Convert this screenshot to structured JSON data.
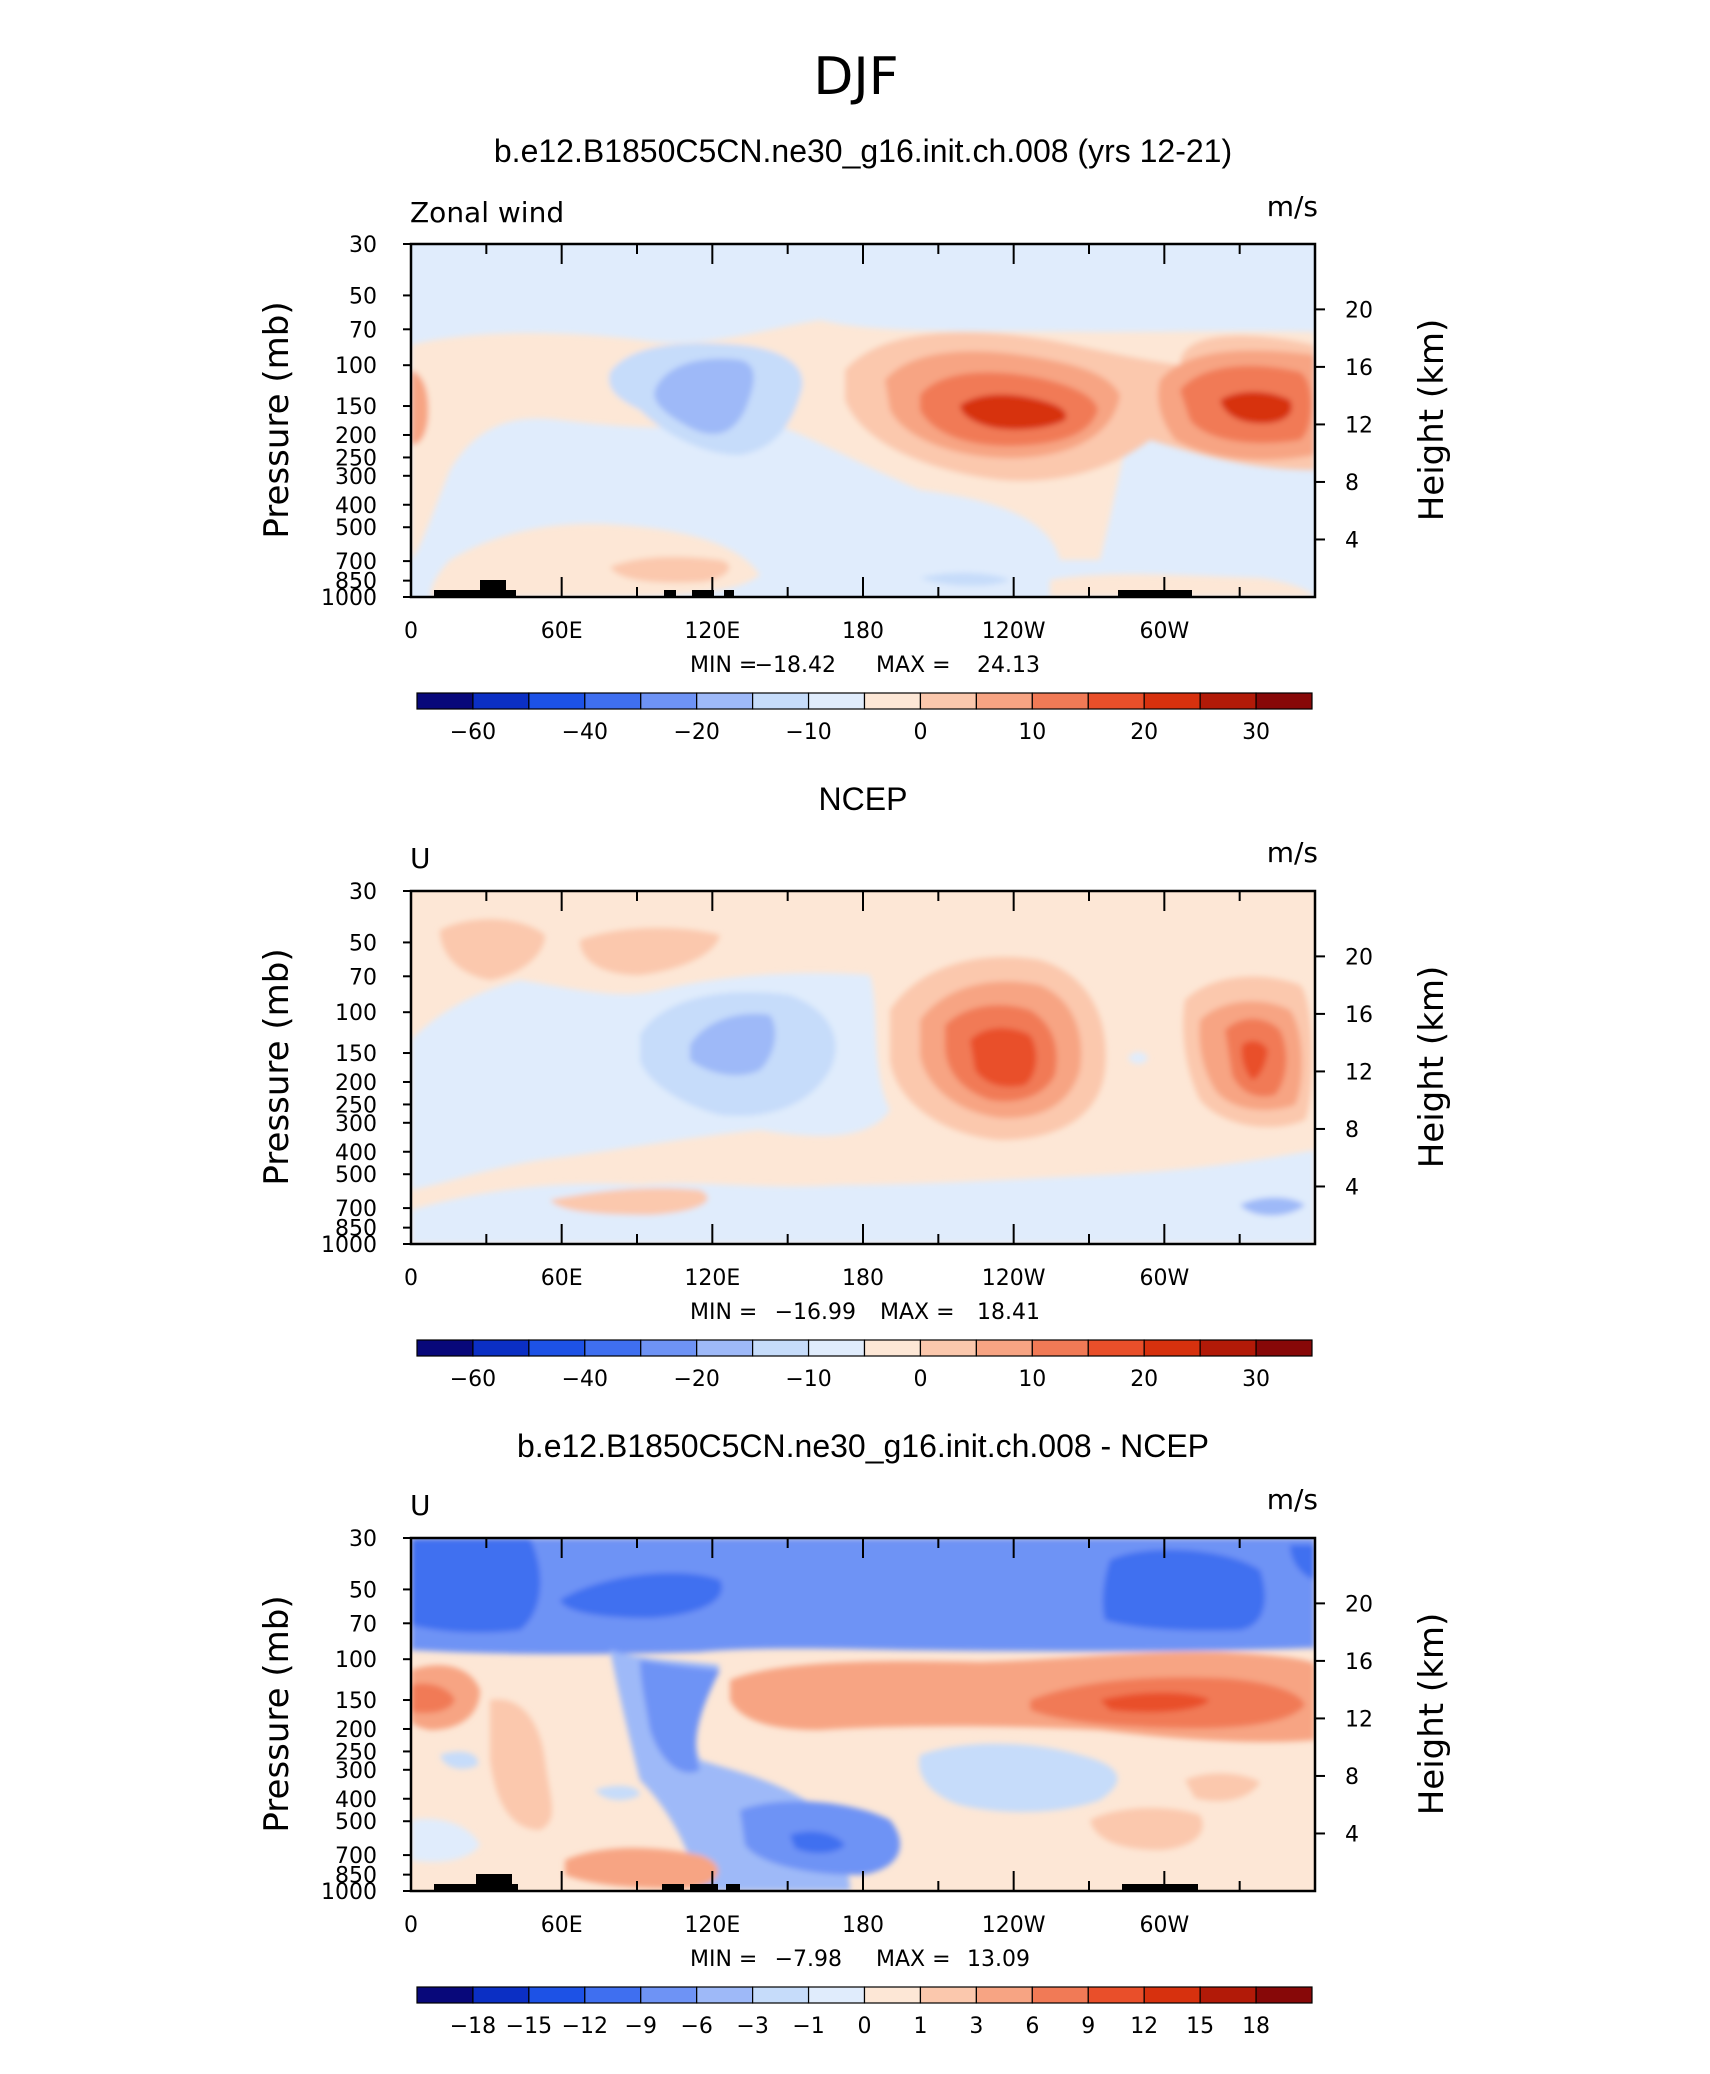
{
  "figure": {
    "title": "DJF"
  },
  "chart_data": [
    {
      "type": "heatmap",
      "title": "b.e12.B1850C5CN.ne30_g16.init.ch.008 (yrs 12-21)",
      "left_label": "Zonal wind",
      "units": "m/s",
      "ylabel": "Pressure  (mb)",
      "ylabel_right": "Height  (km)",
      "x_ticks": [
        "0",
        "60E",
        "120E",
        "180",
        "120W",
        "60W"
      ],
      "x_tick_lons": [
        0,
        60,
        120,
        180,
        240,
        300
      ],
      "xlim": [
        0,
        360
      ],
      "y_ticks": [
        30,
        50,
        70,
        100,
        150,
        200,
        250,
        300,
        400,
        500,
        700,
        850,
        1000
      ],
      "y_tick_labels": [
        "30",
        "50",
        "70",
        "100",
        "150",
        "200",
        "250",
        "300",
        "400",
        "500",
        "700",
        "850",
        "1000"
      ],
      "ylim": [
        1000,
        30
      ],
      "yscale": "log",
      "height_ticks": [
        4,
        8,
        12,
        16,
        20
      ],
      "height_tick_labels": [
        "4",
        "8",
        "12",
        "16",
        "20"
      ],
      "min_label": "MIN =",
      "min_value": "−18.42",
      "max_label": "MAX =",
      "max_value": "24.13",
      "colorbar": {
        "labels": [
          "−60",
          "−40",
          "−20",
          "−10",
          "0",
          "10",
          "20",
          "30"
        ],
        "colors": [
          "#08087a",
          "#0b2fc4",
          "#1d52e6",
          "#3f6ff0",
          "#6e93f5",
          "#9eb9f8",
          "#c6dcfa",
          "#e0ecfc",
          "#fde7d6",
          "#fbc8ad",
          "#f7a483",
          "#f17a56",
          "#e94f2a",
          "#d7310e",
          "#b21a08",
          "#870808"
        ]
      },
      "fields": [
        {
          "level": "weak-positive",
          "color": "#fde7d6",
          "lon": [
            0,
            360
          ],
          "p": [
            70,
            200
          ]
        },
        {
          "level": "jet-core",
          "color": "#e94f2a",
          "lon": [
            225,
            240
          ],
          "p": [
            140,
            160
          ]
        },
        {
          "level": "jet-core",
          "color": "#e94f2a",
          "lon": [
            320,
            335
          ],
          "p": [
            140,
            160
          ]
        },
        {
          "level": "negative-core",
          "color": "#6e93f5",
          "lon": [
            100,
            135
          ],
          "p": [
            100,
            160
          ]
        }
      ]
    },
    {
      "type": "heatmap",
      "title": "NCEP",
      "left_label": "U",
      "units": "m/s",
      "ylabel": "Pressure  (mb)",
      "ylabel_right": "Height  (km)",
      "x_ticks": [
        "0",
        "60E",
        "120E",
        "180",
        "120W",
        "60W"
      ],
      "x_tick_lons": [
        0,
        60,
        120,
        180,
        240,
        300
      ],
      "xlim": [
        0,
        360
      ],
      "y_ticks": [
        30,
        50,
        70,
        100,
        150,
        200,
        250,
        300,
        400,
        500,
        700,
        850,
        1000
      ],
      "y_tick_labels": [
        "30",
        "50",
        "70",
        "100",
        "150",
        "200",
        "250",
        "300",
        "400",
        "500",
        "700",
        "850",
        "1000"
      ],
      "ylim": [
        1000,
        30
      ],
      "yscale": "log",
      "height_ticks": [
        4,
        8,
        12,
        16,
        20
      ],
      "height_tick_labels": [
        "4",
        "8",
        "12",
        "16",
        "20"
      ],
      "min_label": "MIN =",
      "min_value": "−16.99",
      "max_label": "MAX =",
      "max_value": "18.41",
      "colorbar": {
        "labels": [
          "−60",
          "−40",
          "−20",
          "−10",
          "0",
          "10",
          "20",
          "30"
        ],
        "colors": [
          "#08087a",
          "#0b2fc4",
          "#1d52e6",
          "#3f6ff0",
          "#6e93f5",
          "#9eb9f8",
          "#c6dcfa",
          "#e0ecfc",
          "#fde7d6",
          "#fbc8ad",
          "#f7a483",
          "#f17a56",
          "#e94f2a",
          "#d7310e",
          "#b21a08",
          "#870808"
        ]
      }
    },
    {
      "type": "heatmap",
      "title": "b.e12.B1850C5CN.ne30_g16.init.ch.008 - NCEP",
      "left_label": "U",
      "units": "m/s",
      "ylabel": "Pressure  (mb)",
      "ylabel_right": "Height  (km)",
      "x_ticks": [
        "0",
        "60E",
        "120E",
        "180",
        "120W",
        "60W"
      ],
      "x_tick_lons": [
        0,
        60,
        120,
        180,
        240,
        300
      ],
      "xlim": [
        0,
        360
      ],
      "y_ticks": [
        30,
        50,
        70,
        100,
        150,
        200,
        250,
        300,
        400,
        500,
        700,
        850,
        1000
      ],
      "y_tick_labels": [
        "30",
        "50",
        "70",
        "100",
        "150",
        "200",
        "250",
        "300",
        "400",
        "500",
        "700",
        "850",
        "1000"
      ],
      "ylim": [
        1000,
        30
      ],
      "yscale": "log",
      "height_ticks": [
        4,
        8,
        12,
        16,
        20
      ],
      "height_tick_labels": [
        "4",
        "8",
        "12",
        "16",
        "20"
      ],
      "min_label": "MIN =",
      "min_value": "−7.98",
      "max_label": "MAX =",
      "max_value": "13.09",
      "colorbar": {
        "labels": [
          "−18",
          "−15",
          "−12",
          "−9",
          "−6",
          "−3",
          "−1",
          "0",
          "1",
          "3",
          "6",
          "9",
          "12",
          "15",
          "18"
        ],
        "colors": [
          "#08087a",
          "#0b2fc4",
          "#1d52e6",
          "#3f6ff0",
          "#6e93f5",
          "#9eb9f8",
          "#c6dcfa",
          "#e0ecfc",
          "#fde7d6",
          "#fbc8ad",
          "#f7a483",
          "#f17a56",
          "#e94f2a",
          "#d7310e",
          "#b21a08",
          "#870808"
        ]
      }
    }
  ]
}
